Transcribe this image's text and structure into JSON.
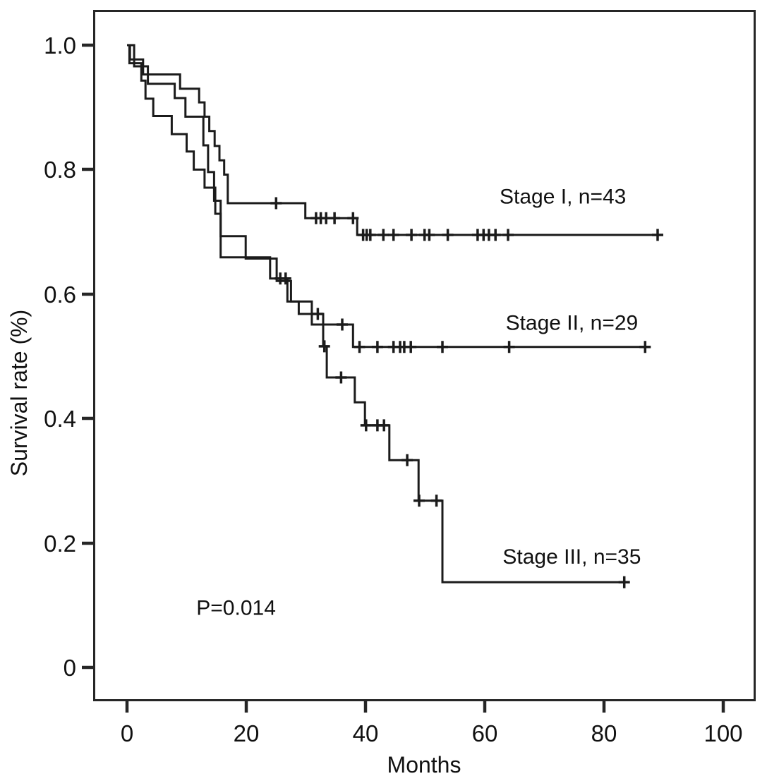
{
  "figure": {
    "xlabel": "Months",
    "ylabel": "Survival rate (%)",
    "x_ticks": [
      "0",
      "20",
      "40",
      "60",
      "80",
      "100"
    ],
    "y_ticks": [
      "1.0",
      "0.8",
      "0.6",
      "0.4",
      "0.2",
      "0"
    ],
    "frame_color": "#262626",
    "background_color": "#ffffff"
  },
  "chart_data": {
    "type": "line",
    "subtype": "kaplan-meier-step",
    "title": "",
    "xlabel": "Months",
    "ylabel": "Survival rate (%)",
    "xlim": [
      0,
      100
    ],
    "ylim": [
      0,
      1.0
    ],
    "grid": false,
    "legend_position": "inline-labels",
    "line_color": "#1b1b1b",
    "annotations": [
      {
        "text": "P=0.014",
        "x": 18.3,
        "y": 0.096
      }
    ],
    "series": [
      {
        "id": "stage-1",
        "label": "Stage I, n=43",
        "n": 43,
        "label_pos": {
          "x": 73.1,
          "y": 0.757
        },
        "start": [
          0,
          1.0
        ],
        "steps": [
          [
            0.5,
            0.977
          ],
          [
            2.7,
            0.953
          ],
          [
            8.9,
            0.93
          ],
          [
            12.1,
            0.908
          ],
          [
            13.0,
            0.885
          ],
          [
            13.8,
            0.862
          ],
          [
            14.7,
            0.838
          ],
          [
            15.5,
            0.815
          ],
          [
            16.3,
            0.792
          ],
          [
            16.9,
            0.746
          ],
          [
            29.9,
            0.722
          ],
          [
            38.6,
            0.695
          ]
        ],
        "end_time": 89.3,
        "censors": [
          [
            25.0,
            0.746
          ],
          [
            31.7,
            0.722
          ],
          [
            32.5,
            0.722
          ],
          [
            33.4,
            0.722
          ],
          [
            34.8,
            0.722
          ],
          [
            37.9,
            0.722
          ],
          [
            39.6,
            0.695
          ],
          [
            40.2,
            0.695
          ],
          [
            40.8,
            0.695
          ],
          [
            43.0,
            0.695
          ],
          [
            44.7,
            0.695
          ],
          [
            47.7,
            0.695
          ],
          [
            49.9,
            0.695
          ],
          [
            50.7,
            0.695
          ],
          [
            53.8,
            0.695
          ],
          [
            58.8,
            0.695
          ],
          [
            59.8,
            0.695
          ],
          [
            60.7,
            0.695
          ],
          [
            61.8,
            0.695
          ],
          [
            63.9,
            0.695
          ],
          [
            89.0,
            0.695
          ]
        ]
      },
      {
        "id": "stage-2",
        "label": "Stage II, n=29",
        "n": 29,
        "label_pos": {
          "x": 74.6,
          "y": 0.554
        },
        "start": [
          0,
          1.0
        ],
        "steps": [
          [
            1.2,
            0.966
          ],
          [
            3.5,
            0.938
          ],
          [
            8.0,
            0.915
          ],
          [
            9.8,
            0.885
          ],
          [
            12.8,
            0.839
          ],
          [
            13.6,
            0.796
          ],
          [
            14.6,
            0.75
          ],
          [
            15.7,
            0.659
          ],
          [
            24.0,
            0.625
          ],
          [
            26.9,
            0.588
          ],
          [
            31.0,
            0.551
          ],
          [
            37.9,
            0.515
          ]
        ],
        "end_time": 87.6,
        "censors": [
          [
            25.7,
            0.625
          ],
          [
            26.6,
            0.625
          ],
          [
            36.1,
            0.551
          ],
          [
            39.0,
            0.515
          ],
          [
            42.0,
            0.515
          ],
          [
            44.7,
            0.515
          ],
          [
            45.8,
            0.515
          ],
          [
            46.5,
            0.515
          ],
          [
            47.6,
            0.515
          ],
          [
            52.9,
            0.515
          ],
          [
            64.1,
            0.515
          ],
          [
            86.9,
            0.515
          ]
        ]
      },
      {
        "id": "stage-3",
        "label": "Stage III, n=35",
        "n": 35,
        "label_pos": {
          "x": 74.6,
          "y": 0.178
        },
        "start": [
          0,
          1.0
        ],
        "steps": [
          [
            0.4,
            0.971
          ],
          [
            2.4,
            0.943
          ],
          [
            3.1,
            0.914
          ],
          [
            4.4,
            0.886
          ],
          [
            7.5,
            0.857
          ],
          [
            10.0,
            0.829
          ],
          [
            11.2,
            0.8
          ],
          [
            13.0,
            0.771
          ],
          [
            14.8,
            0.729
          ],
          [
            15.7,
            0.693
          ],
          [
            19.9,
            0.657
          ],
          [
            25.1,
            0.621
          ],
          [
            27.5,
            0.588
          ],
          [
            28.8,
            0.568
          ],
          [
            32.9,
            0.516
          ],
          [
            33.5,
            0.466
          ],
          [
            38.2,
            0.426
          ],
          [
            39.9,
            0.389
          ],
          [
            44.0,
            0.333
          ],
          [
            48.9,
            0.268
          ],
          [
            52.9,
            0.137
          ]
        ],
        "end_time": 84.3,
        "censors": [
          [
            32.0,
            0.568
          ],
          [
            33.1,
            0.516
          ],
          [
            35.9,
            0.466
          ],
          [
            40.1,
            0.389
          ],
          [
            42.0,
            0.389
          ],
          [
            43.1,
            0.389
          ],
          [
            47.0,
            0.333
          ],
          [
            49.0,
            0.268
          ],
          [
            51.9,
            0.268
          ],
          [
            83.4,
            0.137
          ]
        ]
      }
    ]
  }
}
